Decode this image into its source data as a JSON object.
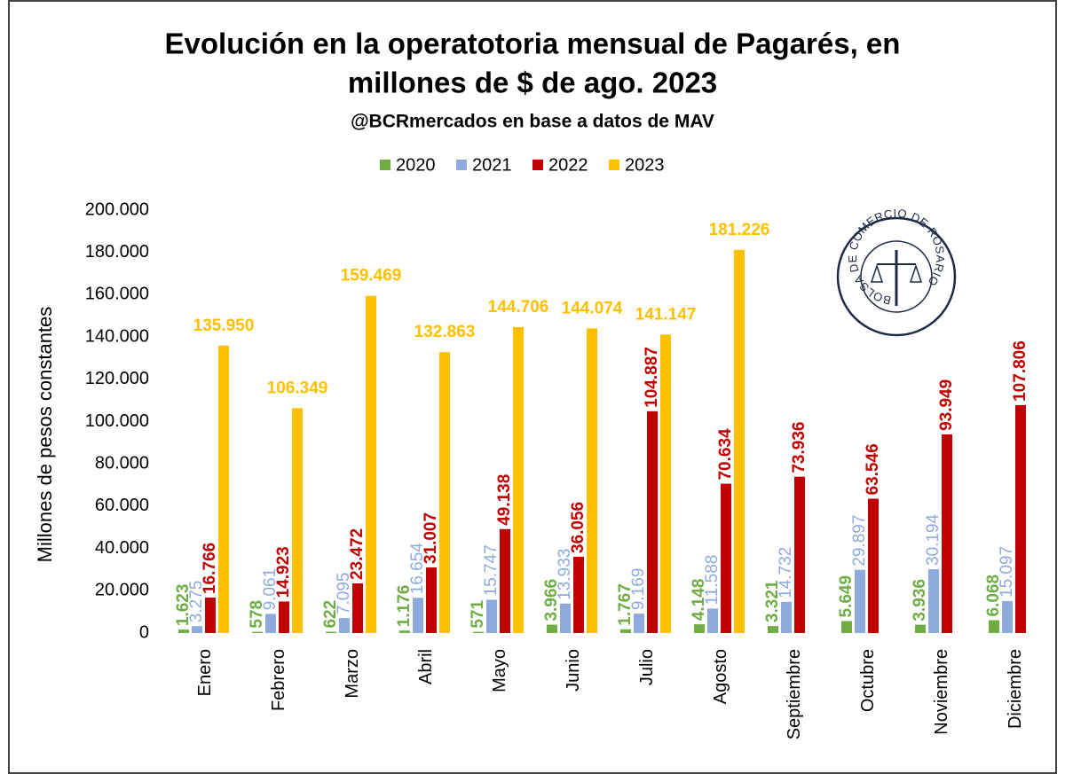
{
  "chart_data": {
    "type": "bar",
    "title": [
      "Evolución en la operatotoria mensual de Pagarés, en",
      "millones de $ de ago. 2023"
    ],
    "subtitle": "@BCRmercados en base a datos de MAV",
    "y_label": "Millones de pesos constantes",
    "logo": "BOLSA DE COMERCIO DE ROSARIO",
    "categories": [
      "Enero",
      "Febrero",
      "Marzo",
      "Abril",
      "Mayo",
      "Junio",
      "Julio",
      "Agosto",
      "Septiembre",
      "Octubre",
      "Noviembre",
      "Diciembre"
    ],
    "series": [
      {
        "name": "2020",
        "color": "#70ad47",
        "values": [
          1623,
          578,
          622,
          1176,
          571,
          3966,
          1767,
          4148,
          3321,
          5649,
          3936,
          6068
        ],
        "value_labels": [
          "1.623",
          "578",
          "622",
          "1.176",
          "571",
          "3.966",
          "1.767",
          "4.148",
          "3.321",
          "5.649",
          "3.936",
          "6.068"
        ]
      },
      {
        "name": "2021",
        "color": "#8faadc",
        "values": [
          3275,
          9061,
          7095,
          16654,
          15747,
          13933,
          9169,
          11588,
          14732,
          29897,
          30194,
          15097
        ],
        "value_labels": [
          "3.275",
          "9.061",
          "7.095",
          "16.654",
          "15.747",
          "13.933",
          "9.169",
          "11.588",
          "14.732",
          "29.897",
          "30.194",
          "15.097"
        ]
      },
      {
        "name": "2022",
        "color": "#c00000",
        "values": [
          16766,
          14923,
          23472,
          31007,
          49138,
          36056,
          104887,
          70634,
          73936,
          63546,
          93949,
          107806
        ],
        "value_labels": [
          "16.766",
          "14.923",
          "23.472",
          "31.007",
          "49.138",
          "36.056",
          "104.887",
          "70.634",
          "73.936",
          "63.546",
          "93.949",
          "107.806"
        ]
      },
      {
        "name": "2023",
        "color": "#ffc000",
        "values": [
          135950,
          106349,
          159469,
          132863,
          144706,
          144074,
          141147,
          181226,
          null,
          null,
          null,
          null
        ],
        "value_labels": [
          "135.950",
          "106.349",
          "159.469",
          "132.863",
          "144.706",
          "144.074",
          "141.147",
          "181.226",
          null,
          null,
          null,
          null
        ]
      }
    ],
    "ylim": [
      0,
      200000
    ],
    "yticks": [
      0,
      {
        "value": 20000,
        "label": "20.000"
      },
      {
        "value": 40000,
        "label": "40.000"
      },
      {
        "value": 60000,
        "label": "60.000"
      },
      {
        "value": 80000,
        "label": "80.000"
      },
      {
        "value": 100000,
        "label": "100.000"
      },
      {
        "value": 120000,
        "label": "120.000"
      },
      {
        "value": 140000,
        "label": "140.000"
      },
      {
        "value": 160000,
        "label": "160.000"
      },
      {
        "value": 180000,
        "label": "180.000"
      },
      {
        "value": 200000,
        "label": "200.000"
      }
    ],
    "grid": false,
    "legend": "top"
  }
}
